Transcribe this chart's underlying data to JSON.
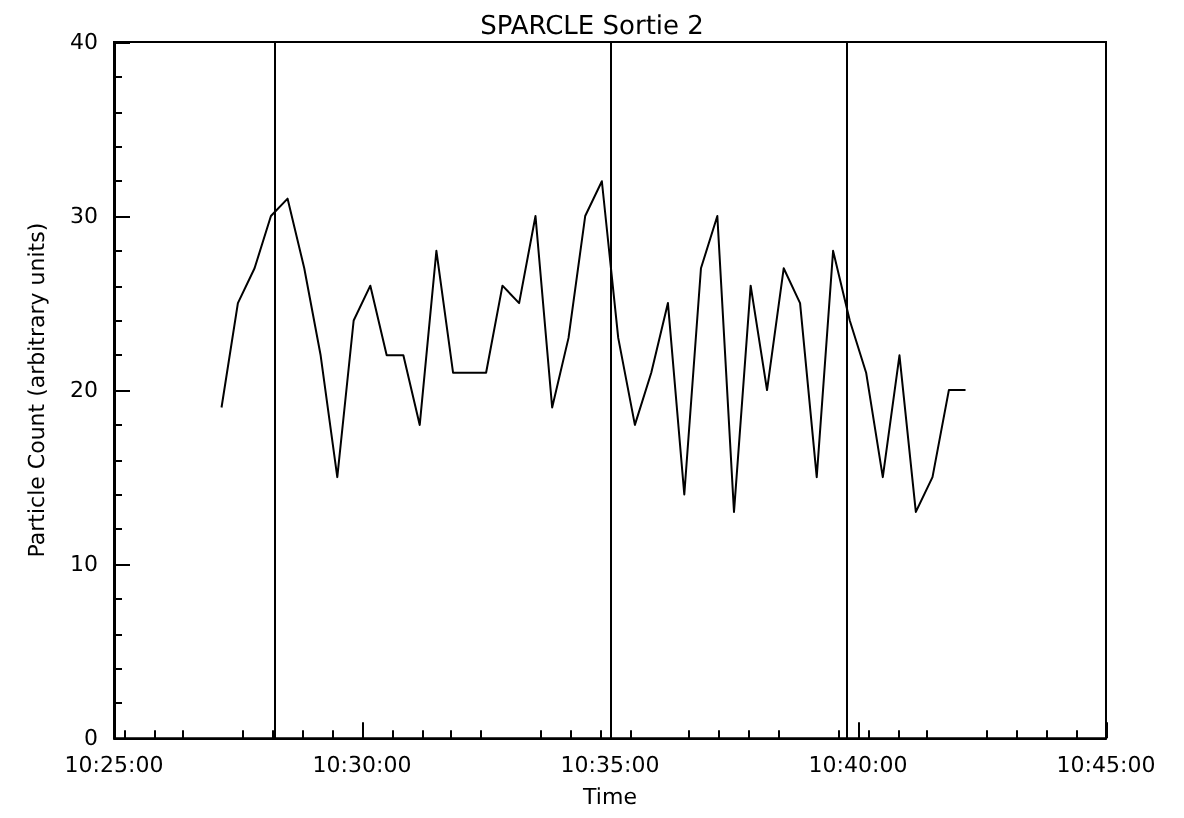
{
  "chart_data": {
    "type": "line",
    "title": "SPARCLE Sortie 2",
    "xlabel": "Time",
    "ylabel": "Particle Count (arbitrary units)",
    "x": [
      10.4528,
      10.4583,
      10.4639,
      10.4694,
      10.475,
      10.4806,
      10.4861,
      10.4917,
      10.4972,
      10.5028,
      10.5083,
      10.5139,
      10.5194,
      10.525,
      10.5306,
      10.5361,
      10.5417,
      10.5472,
      10.5528,
      10.5583,
      10.5639,
      10.5694,
      10.575,
      10.5806,
      10.5861,
      10.5917,
      10.5972,
      10.6028,
      10.6083,
      10.6139,
      10.6194,
      10.625,
      10.6306,
      10.6361,
      10.6417,
      10.6472,
      10.6528,
      10.6583,
      10.6639,
      10.6694,
      10.675,
      10.6806,
      10.6861,
      10.6917,
      10.6972,
      10.7028
    ],
    "series": [
      {
        "color": "#000000",
        "values": [
          19,
          25,
          27,
          30,
          31,
          27,
          22,
          15,
          24,
          26,
          22,
          22,
          18,
          28,
          21,
          21,
          21,
          26,
          25,
          30,
          19,
          23,
          30,
          32,
          23,
          18,
          21,
          25,
          14,
          27,
          30,
          13,
          26,
          20,
          27,
          25,
          15,
          28,
          24,
          21,
          15,
          22,
          13,
          15,
          20,
          20
        ]
      }
    ],
    "xlim": [
      10.41667,
      10.75
    ],
    "xticks": [
      {
        "value": 10.41667,
        "label": "10:25:00"
      },
      {
        "value": 10.5,
        "label": "10:30:00"
      },
      {
        "value": 10.58333,
        "label": "10:35:00"
      },
      {
        "value": 10.66667,
        "label": "10:40:00"
      },
      {
        "value": 10.75,
        "label": "10:45:00"
      }
    ],
    "ylim": [
      0,
      40
    ],
    "yticks": [
      0,
      10,
      20,
      30,
      40
    ],
    "ref_lines": [
      {
        "axis": "x",
        "value": 10.4708,
        "color": "#000000"
      },
      {
        "axis": "x",
        "value": 10.5833,
        "color": "#000000"
      },
      {
        "axis": "x",
        "value": 10.6631,
        "color": "#000000"
      }
    ],
    "grid": false,
    "marker": "none",
    "line_style": "solid"
  }
}
